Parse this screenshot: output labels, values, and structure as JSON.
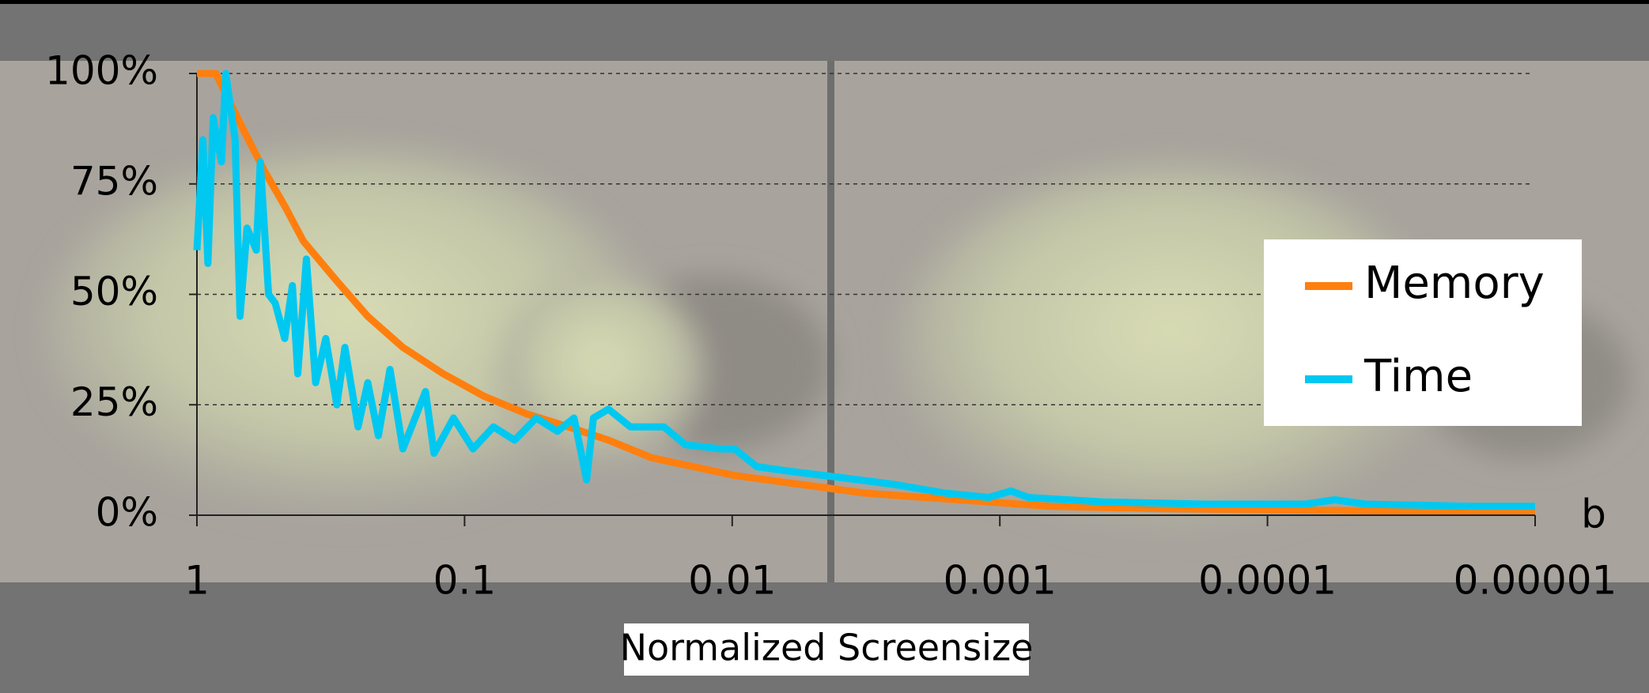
{
  "chart_data": {
    "type": "line",
    "xlabel": "Normalized Screensize",
    "axis_note": "b",
    "xscale": "log",
    "xlim": [
      1,
      1e-05
    ],
    "xticks": [
      1,
      0.1,
      0.01,
      0.001,
      0.0001,
      1e-05
    ],
    "ylim": [
      0,
      100
    ],
    "yticks": [
      {
        "value": 0,
        "label": "0%"
      },
      {
        "value": 25,
        "label": "25%"
      },
      {
        "value": 50,
        "label": "50%"
      },
      {
        "value": 75,
        "label": "75%"
      },
      {
        "value": 100,
        "label": "100%"
      }
    ],
    "grid": true,
    "legend": "right",
    "series": [
      {
        "name": "Memory",
        "color": "#ff7f0e",
        "x": [
          1,
          0.85,
          0.68,
          0.56,
          0.47,
          0.4,
          0.3,
          0.23,
          0.17,
          0.12,
          0.085,
          0.059,
          0.041,
          0.029,
          0.02,
          0.014,
          0.0098,
          0.0056,
          0.0032,
          0.0019,
          0.0011,
          0.00065,
          0.00026,
          4.3e-05,
          1e-05
        ],
        "values": [
          100,
          100,
          88,
          78,
          70,
          62,
          53,
          45,
          38,
          32,
          27,
          23,
          20,
          17,
          13,
          11,
          9,
          7,
          5,
          4,
          3,
          2,
          1.5,
          1,
          1
        ]
      },
      {
        "name": "Time",
        "color": "#00c8f0",
        "x": [
          1,
          0.95,
          0.91,
          0.87,
          0.81,
          0.78,
          0.72,
          0.69,
          0.65,
          0.6,
          0.58,
          0.54,
          0.51,
          0.47,
          0.44,
          0.42,
          0.39,
          0.36,
          0.33,
          0.3,
          0.28,
          0.25,
          0.23,
          0.21,
          0.19,
          0.17,
          0.14,
          0.13,
          0.11,
          0.093,
          0.078,
          0.065,
          0.054,
          0.045,
          0.039,
          0.035,
          0.033,
          0.029,
          0.024,
          0.018,
          0.015,
          0.011,
          0.0098,
          0.0081,
          0.0062,
          0.0039,
          0.0025,
          0.0016,
          0.0011,
          0.00091,
          0.00078,
          0.00041,
          0.00017,
          7.2e-05,
          5.6e-05,
          4.3e-05,
          1.7e-05,
          1e-05
        ],
        "values": [
          60,
          85,
          57,
          90,
          80,
          100,
          85,
          45,
          65,
          60,
          80,
          50,
          48,
          40,
          52,
          32,
          58,
          30,
          40,
          25,
          38,
          20,
          30,
          18,
          33,
          15,
          28,
          14,
          22,
          15,
          20,
          17,
          22,
          19,
          22,
          8,
          22,
          24,
          20,
          20,
          16,
          15,
          15,
          11,
          10,
          8.5,
          7,
          5,
          4,
          5.5,
          4,
          3,
          2.5,
          2.5,
          3.5,
          2.5,
          2,
          2
        ]
      }
    ]
  }
}
